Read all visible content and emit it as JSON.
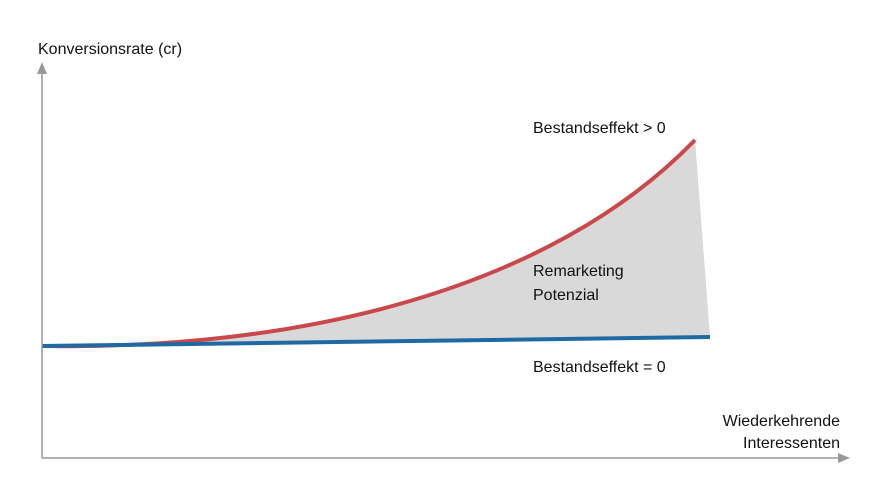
{
  "axes": {
    "y_label": "Konversionsrate (cr)",
    "x_label": [
      "Wiederkehrende",
      "Interessenten"
    ]
  },
  "curves": {
    "upper": "Bestandseffekt > 0",
    "lower": "Bestandseffekt = 0"
  },
  "area": [
    "Remarketing",
    "Potenzial"
  ]
}
